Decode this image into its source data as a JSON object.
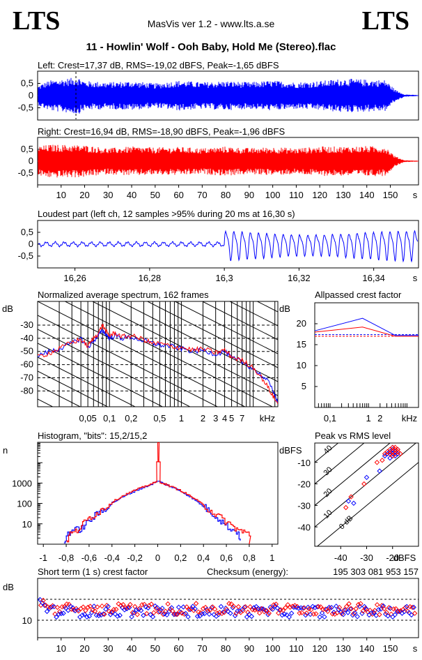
{
  "header": {
    "logo_left": "LTS",
    "logo_right": "LTS",
    "app_title": "MasVis ver 1.2 - www.lts.a.se",
    "file_title": "11 - Howlin' Wolf - Ooh Baby, Hold Me (Stereo).flac"
  },
  "colors": {
    "left": "#0000ff",
    "right": "#ff0000",
    "grid": "#000000",
    "background": "#ffffff"
  },
  "chart_data": [
    {
      "id": "waveform-left",
      "type": "area",
      "title": "Left: Crest=17,37 dB, RMS=-19,02 dBFS, Peak=-1,65 dBFS",
      "ylim": [
        -1,
        1
      ],
      "yticks": [
        "0,5",
        "0",
        "-0,5"
      ],
      "xlim": [
        0,
        162
      ],
      "envelope": [
        [
          0,
          0.38
        ],
        [
          2,
          0.5
        ],
        [
          5,
          0.62
        ],
        [
          10,
          0.68
        ],
        [
          15,
          0.73
        ],
        [
          17,
          0.78
        ],
        [
          20,
          0.6
        ],
        [
          30,
          0.55
        ],
        [
          40,
          0.6
        ],
        [
          50,
          0.5
        ],
        [
          60,
          0.62
        ],
        [
          70,
          0.55
        ],
        [
          80,
          0.6
        ],
        [
          90,
          0.55
        ],
        [
          100,
          0.62
        ],
        [
          110,
          0.55
        ],
        [
          120,
          0.6
        ],
        [
          130,
          0.7
        ],
        [
          140,
          0.66
        ],
        [
          148,
          0.64
        ],
        [
          152,
          0.25
        ],
        [
          156,
          0.05
        ],
        [
          162,
          0.02
        ]
      ],
      "marker_x": 16.3
    },
    {
      "id": "waveform-right",
      "type": "area",
      "title": "Right: Crest=16,94 dB, RMS=-18,90 dBFS, Peak=-1,96 dBFS",
      "ylim": [
        -1,
        1
      ],
      "yticks": [
        "0,5",
        "0",
        "-0,5"
      ],
      "xlim": [
        0,
        162
      ],
      "xticks": [
        "10",
        "20",
        "30",
        "40",
        "50",
        "60",
        "70",
        "80",
        "90",
        "100",
        "110",
        "120",
        "130",
        "140",
        "150"
      ],
      "x_unit": "s",
      "envelope": [
        [
          0,
          0.62
        ],
        [
          5,
          0.7
        ],
        [
          10,
          0.7
        ],
        [
          20,
          0.68
        ],
        [
          30,
          0.55
        ],
        [
          40,
          0.62
        ],
        [
          50,
          0.58
        ],
        [
          60,
          0.6
        ],
        [
          70,
          0.55
        ],
        [
          80,
          0.62
        ],
        [
          90,
          0.55
        ],
        [
          100,
          0.6
        ],
        [
          110,
          0.55
        ],
        [
          120,
          0.62
        ],
        [
          130,
          0.62
        ],
        [
          140,
          0.64
        ],
        [
          148,
          0.62
        ],
        [
          152,
          0.22
        ],
        [
          156,
          0.04
        ],
        [
          162,
          0.02
        ]
      ]
    },
    {
      "id": "loudest-part",
      "type": "line",
      "title": "Loudest part (left  ch, 12 samples >95% during 20 ms at 16,30 s)",
      "ylim": [
        -1,
        1
      ],
      "yticks": [
        "0,5",
        "0",
        "-0,5"
      ],
      "xlim": [
        16.25,
        16.352
      ],
      "xticks": [
        "16,26",
        "16,28",
        "16,3",
        "16,32",
        "16,34"
      ],
      "xtick_values": [
        16.26,
        16.28,
        16.3,
        16.32,
        16.34
      ],
      "x_unit": "s",
      "pre_amplitude": 0.08,
      "post_amplitude": 0.7,
      "transition_x": 16.3,
      "cycle_period": 0.0022
    },
    {
      "id": "avg-spectrum",
      "type": "line",
      "title": "Normalized average spectrum, 162 frames",
      "ylabel": "dB",
      "yticks": [
        "-30",
        "-40",
        "-50",
        "-60",
        "-70",
        "-80"
      ],
      "ytick_values": [
        -30,
        -40,
        -50,
        -60,
        -70,
        -80
      ],
      "ylim": [
        -92,
        -12
      ],
      "xlim_khz": [
        0.01,
        22
      ],
      "xticks": [
        "0,05",
        "0,1",
        "0,2",
        "0,5",
        "1",
        "2",
        "3",
        "4",
        "5",
        "7"
      ],
      "xtick_values": [
        0.05,
        0.1,
        0.2,
        0.5,
        1,
        2,
        3,
        4,
        5,
        7
      ],
      "x_unit": "kHz",
      "series": [
        {
          "color": "#0000ff",
          "points": [
            [
              0.01,
              -53
            ],
            [
              0.015,
              -50
            ],
            [
              0.02,
              -48
            ],
            [
              0.03,
              -44
            ],
            [
              0.04,
              -40
            ],
            [
              0.05,
              -47
            ],
            [
              0.06,
              -42
            ],
            [
              0.07,
              -38
            ],
            [
              0.08,
              -34
            ],
            [
              0.09,
              -37
            ],
            [
              0.1,
              -40
            ],
            [
              0.12,
              -38
            ],
            [
              0.15,
              -40
            ],
            [
              0.2,
              -39
            ],
            [
              0.3,
              -42
            ],
            [
              0.4,
              -44
            ],
            [
              0.5,
              -45
            ],
            [
              0.7,
              -46
            ],
            [
              1,
              -48
            ],
            [
              1.5,
              -50
            ],
            [
              2,
              -49
            ],
            [
              3,
              -52
            ],
            [
              4,
              -50
            ],
            [
              5,
              -55
            ],
            [
              7,
              -58
            ],
            [
              10,
              -63
            ],
            [
              14,
              -70
            ],
            [
              18,
              -76
            ],
            [
              22,
              -90
            ]
          ]
        },
        {
          "color": "#ff0000",
          "points": [
            [
              0.01,
              -54
            ],
            [
              0.015,
              -51
            ],
            [
              0.02,
              -48
            ],
            [
              0.03,
              -43
            ],
            [
              0.04,
              -41
            ],
            [
              0.05,
              -46
            ],
            [
              0.06,
              -40
            ],
            [
              0.07,
              -36
            ],
            [
              0.08,
              -30
            ],
            [
              0.09,
              -35
            ],
            [
              0.1,
              -38
            ],
            [
              0.12,
              -36
            ],
            [
              0.15,
              -39
            ],
            [
              0.2,
              -38
            ],
            [
              0.3,
              -41
            ],
            [
              0.4,
              -44
            ],
            [
              0.5,
              -44
            ],
            [
              0.7,
              -46
            ],
            [
              1,
              -47
            ],
            [
              1.5,
              -49
            ],
            [
              2,
              -48
            ],
            [
              3,
              -51
            ],
            [
              4,
              -49
            ],
            [
              5,
              -54
            ],
            [
              7,
              -57
            ],
            [
              10,
              -62
            ],
            [
              14,
              -72
            ],
            [
              18,
              -82
            ],
            [
              22,
              -90
            ]
          ]
        }
      ]
    },
    {
      "id": "allpassed-crest",
      "type": "line",
      "title": "Allpassed crest factor",
      "ylabel": "dB",
      "yticks": [
        "20",
        "15",
        "10",
        "5"
      ],
      "ytick_values": [
        20,
        15,
        10,
        5
      ],
      "ylim": [
        0,
        25
      ],
      "xlim_khz": [
        0.04,
        20
      ],
      "xticks": [
        "0,1",
        "1",
        "2"
      ],
      "xtick_values": [
        0.1,
        1,
        2
      ],
      "x_unit": "kHz",
      "series": [
        {
          "color": "#0000ff",
          "points": [
            [
              0.04,
              18.3
            ],
            [
              0.7,
              21.3
            ],
            [
              5,
              17.2
            ],
            [
              20,
              17.2
            ]
          ]
        },
        {
          "color": "#ff0000",
          "points": [
            [
              0.04,
              18.0
            ],
            [
              0.7,
              19.2
            ],
            [
              5,
              17.0
            ],
            [
              20,
              17.0
            ]
          ]
        }
      ],
      "reference_lines": [
        {
          "color": "#0000ff",
          "y": 17.4
        },
        {
          "color": "#ff0000",
          "y": 17.0
        }
      ]
    },
    {
      "id": "histogram",
      "type": "line",
      "title": "Histogram, \"bits\": 15,2/15,2",
      "ylabel": "n",
      "yscale": "log",
      "yticks": [
        "1000",
        "100",
        "10"
      ],
      "ytick_values": [
        1000,
        100,
        10
      ],
      "ylim": [
        1,
        100000
      ],
      "xlim": [
        -1.05,
        1.05
      ],
      "xticks": [
        "-1",
        "-0,8",
        "-0,6",
        "-0,4",
        "-0,2",
        "0",
        "0,2",
        "0,4",
        "0,6",
        "0,8",
        "1"
      ],
      "xtick_values": [
        -1,
        -0.8,
        -0.6,
        -0.4,
        -0.2,
        0,
        0.2,
        0.4,
        0.6,
        0.8,
        1
      ],
      "series": [
        {
          "color": "#0000ff",
          "points": [
            [
              -0.82,
              1
            ],
            [
              -0.8,
              3
            ],
            [
              -0.75,
              5
            ],
            [
              -0.7,
              5
            ],
            [
              -0.65,
              7
            ],
            [
              -0.6,
              15
            ],
            [
              -0.5,
              40
            ],
            [
              -0.4,
              110
            ],
            [
              -0.3,
              220
            ],
            [
              -0.2,
              420
            ],
            [
              -0.1,
              700
            ],
            [
              -0.02,
              1100
            ],
            [
              0,
              1300
            ],
            [
              0.02,
              1100
            ],
            [
              0.1,
              700
            ],
            [
              0.2,
              400
            ],
            [
              0.3,
              180
            ],
            [
              0.4,
              70
            ],
            [
              0.5,
              25
            ],
            [
              0.6,
              8
            ],
            [
              0.65,
              5
            ],
            [
              0.7,
              4
            ],
            [
              0.72,
              1.5
            ]
          ]
        },
        {
          "color": "#ff0000",
          "points": [
            [
              -0.8,
              1
            ],
            [
              -0.78,
              3
            ],
            [
              -0.72,
              4
            ],
            [
              -0.68,
              7
            ],
            [
              -0.6,
              20
            ],
            [
              -0.5,
              45
            ],
            [
              -0.4,
              120
            ],
            [
              -0.3,
              250
            ],
            [
              -0.2,
              450
            ],
            [
              -0.1,
              750
            ],
            [
              -0.02,
              1100
            ],
            [
              0,
              100000
            ],
            [
              0.02,
              1100
            ],
            [
              0.1,
              720
            ],
            [
              0.2,
              420
            ],
            [
              0.3,
              200
            ],
            [
              0.4,
              80
            ],
            [
              0.5,
              30
            ],
            [
              0.6,
              12
            ],
            [
              0.7,
              5
            ],
            [
              0.8,
              3
            ],
            [
              0.8,
              1
            ]
          ]
        }
      ]
    },
    {
      "id": "peak-vs-rms",
      "type": "scatter",
      "title": "Peak vs RMS level",
      "ylabel": "dBFS",
      "yticks": [
        "-10",
        "-20",
        "-30",
        "-40"
      ],
      "ytick_values": [
        -10,
        -20,
        -30,
        -40
      ],
      "xlabel": "dBFS",
      "xticks": [
        "-40",
        "-30",
        "-20"
      ],
      "xtick_values": [
        -40,
        -30,
        -20
      ],
      "xlim": [
        -50,
        -10
      ],
      "ylim": [
        -49,
        -1
      ],
      "diagonal_labels": [
        "40",
        "30",
        "20",
        "10",
        "0 dB"
      ],
      "diagonal_values": [
        40,
        30,
        20,
        10,
        0
      ],
      "series": [
        {
          "color": "#0000ff",
          "points": [
            [
              -20,
              -6
            ],
            [
              -19,
              -7
            ],
            [
              -21,
              -5
            ],
            [
              -18,
              -4
            ],
            [
              -22,
              -6
            ],
            [
              -20,
              -4
            ],
            [
              -19,
              -5
            ],
            [
              -23,
              -7
            ],
            [
              -20,
              -3
            ],
            [
              -21,
              -8
            ],
            [
              -25,
              -14
            ],
            [
              -30,
              -17
            ],
            [
              -35,
              -29
            ],
            [
              -37,
              -28
            ],
            [
              -18,
              -6
            ],
            [
              -20,
              -5
            ]
          ]
        },
        {
          "color": "#ff0000",
          "points": [
            [
              -20,
              -5
            ],
            [
              -19,
              -4
            ],
            [
              -21,
              -6
            ],
            [
              -18,
              -5
            ],
            [
              -22,
              -5
            ],
            [
              -20,
              -3
            ],
            [
              -19,
              -6
            ],
            [
              -23,
              -6
            ],
            [
              -21,
              -4
            ],
            [
              -20,
              -7
            ],
            [
              -24,
              -9
            ],
            [
              -26,
              -10
            ],
            [
              -31,
              -20
            ],
            [
              -36,
              -26
            ],
            [
              -38,
              -31
            ],
            [
              -18,
              -4
            ],
            [
              -17,
              -6
            ],
            [
              -19,
              -3
            ]
          ]
        }
      ]
    },
    {
      "id": "short-term-crest",
      "type": "scatter",
      "title": "Short term (1 s) crest factor",
      "checksum_label": "Checksum (energy):",
      "checksum_value": "195 303 081 953 157",
      "ylabel": "dB",
      "yticks": [
        "10"
      ],
      "ytick_values": [
        10
      ],
      "ylim": [
        5,
        22
      ],
      "xlim": [
        0,
        162
      ],
      "xticks": [
        "10",
        "20",
        "30",
        "40",
        "50",
        "60",
        "70",
        "80",
        "90",
        "100",
        "110",
        "120",
        "130",
        "140",
        "150"
      ],
      "x_unit": "s",
      "ref_lines": [
        16,
        10
      ],
      "series_left_mean": 12.5,
      "series_right_mean": 13.2,
      "spread": 1.6
    }
  ]
}
